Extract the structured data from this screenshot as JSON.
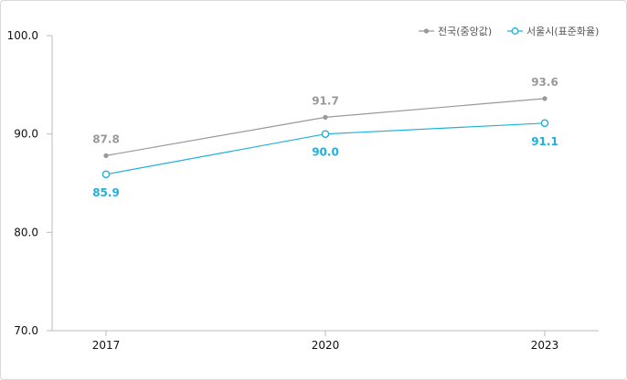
{
  "chart_data": {
    "type": "line",
    "categories": [
      "2017",
      "2020",
      "2023"
    ],
    "ylim": [
      70,
      100
    ],
    "yticks": [
      "100.0",
      "90.0",
      "80.0",
      "70.0"
    ],
    "grid": false,
    "legend_position": "top-right",
    "series": [
      {
        "name": "전국(중앙값)",
        "values": [
          87.8,
          91.7,
          93.6
        ],
        "labels": [
          "87.8",
          "91.7",
          "93.6"
        ],
        "color": "#999999",
        "marker": "filled-dot"
      },
      {
        "name": "서울시(표준화율)",
        "values": [
          85.9,
          90.0,
          91.1
        ],
        "labels": [
          "85.9",
          "90.0",
          "91.1"
        ],
        "color": "#1fb0dc",
        "marker": "open-circle"
      }
    ]
  }
}
